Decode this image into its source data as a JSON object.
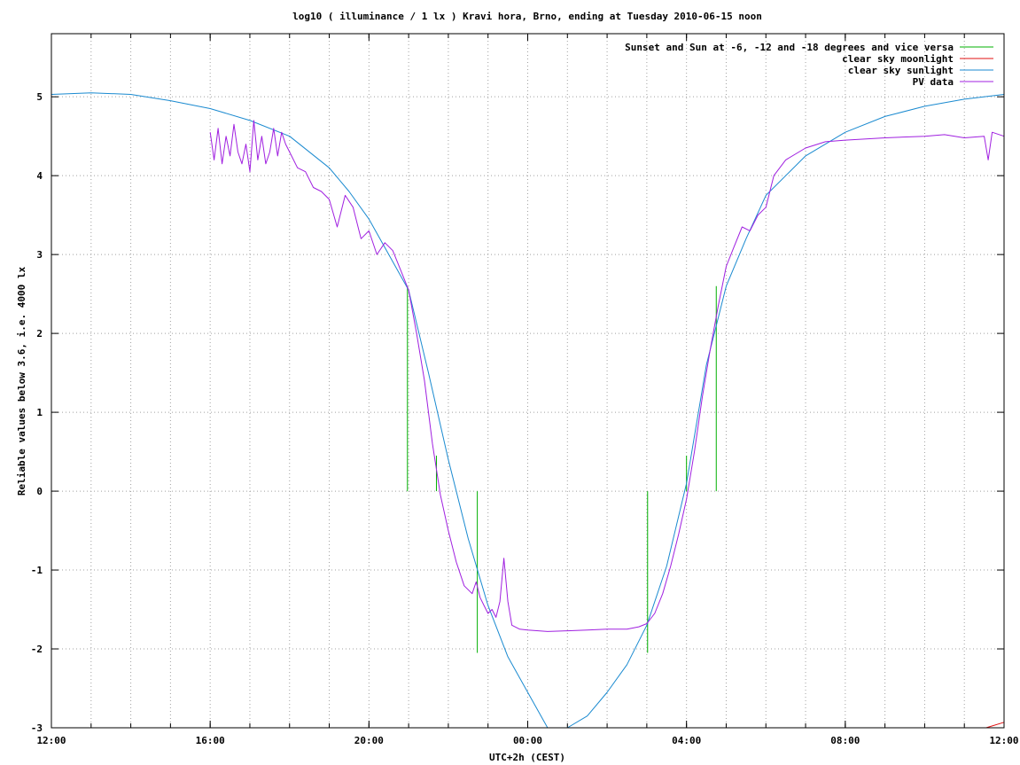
{
  "chart_data": {
    "type": "line",
    "title": "log10 ( illuminance / 1 lx ) Kravi hora, Brno, ending at Tuesday 2010-06-15 noon",
    "xlabel": "UTC+2h (CEST)",
    "ylabel": "Reliable values below 3.6, i.e. 4000 lx",
    "x_unit": "hours since 12:00 (UTC+2h)",
    "xlim": [
      0,
      24
    ],
    "ylim": [
      -3,
      5.8
    ],
    "grid": true,
    "legend_position": "top-right",
    "x_ticks": [
      {
        "value": 0,
        "label": "12:00"
      },
      {
        "value": 4,
        "label": "16:00"
      },
      {
        "value": 8,
        "label": "20:00"
      },
      {
        "value": 12,
        "label": "00:00"
      },
      {
        "value": 16,
        "label": "04:00"
      },
      {
        "value": 20,
        "label": "08:00"
      },
      {
        "value": 24,
        "label": "12:00"
      }
    ],
    "x_minor_step": 1,
    "y_ticks": [
      -3,
      -2,
      -1,
      0,
      1,
      2,
      3,
      4,
      5
    ],
    "series": [
      {
        "name": "Sunset and Sun at -6, -12 and -18 degrees and vice versa",
        "color": "#00b000",
        "kind": "vlines",
        "x": [
          8.97,
          9.7,
          10.73,
          15.02,
          16.0,
          16.75
        ],
        "y_top": [
          2.6,
          0.45,
          0.0,
          0.0,
          0.45,
          2.6
        ],
        "y_bottom": [
          0,
          0,
          -2.05,
          -2.05,
          0,
          0
        ]
      },
      {
        "name": "clear sky moonlight",
        "color": "#e01010",
        "kind": "line",
        "x": [
          23.55,
          24.0
        ],
        "y": [
          -3.0,
          -2.93
        ]
      },
      {
        "name": "clear sky sunlight",
        "color": "#1a8ad0",
        "kind": "line",
        "x": [
          0,
          1,
          2,
          3,
          4,
          5,
          6,
          7,
          7.5,
          8,
          8.5,
          9,
          9.5,
          10,
          10.5,
          11,
          11.5,
          12,
          12.5,
          13,
          13.5,
          14,
          14.5,
          15,
          15.5,
          16,
          16.5,
          17,
          17.5,
          18,
          19,
          20,
          21,
          22,
          23,
          24
        ],
        "y": [
          5.03,
          5.05,
          5.03,
          4.95,
          4.85,
          4.7,
          4.5,
          4.1,
          3.8,
          3.45,
          3.0,
          2.55,
          1.5,
          0.4,
          -0.6,
          -1.45,
          -2.1,
          -2.55,
          -3.0,
          -3.0,
          -2.85,
          -2.55,
          -2.2,
          -1.7,
          -0.95,
          0.1,
          1.6,
          2.6,
          3.2,
          3.75,
          4.25,
          4.55,
          4.75,
          4.88,
          4.97,
          5.03
        ]
      },
      {
        "name": "PV data",
        "color": "#a020e0",
        "kind": "line",
        "x": [
          4.0,
          4.1,
          4.2,
          4.3,
          4.4,
          4.5,
          4.6,
          4.7,
          4.8,
          4.9,
          5.0,
          5.1,
          5.2,
          5.3,
          5.4,
          5.5,
          5.6,
          5.7,
          5.8,
          5.9,
          6.0,
          6.2,
          6.4,
          6.6,
          6.8,
          7.0,
          7.2,
          7.4,
          7.6,
          7.8,
          8.0,
          8.2,
          8.4,
          8.6,
          8.8,
          9.0,
          9.2,
          9.4,
          9.6,
          9.8,
          10.0,
          10.2,
          10.4,
          10.6,
          10.7,
          10.8,
          10.9,
          11.0,
          11.1,
          11.2,
          11.3,
          11.4,
          11.5,
          11.6,
          11.8,
          12.0,
          12.5,
          13.0,
          13.5,
          14.0,
          14.5,
          14.8,
          15.0,
          15.2,
          15.4,
          15.6,
          15.8,
          16.0,
          16.2,
          16.4,
          16.6,
          16.8,
          17.0,
          17.2,
          17.4,
          17.6,
          17.8,
          18.0,
          18.2,
          18.5,
          19.0,
          19.5,
          20.0,
          21.0,
          22.0,
          22.5,
          23.0,
          23.5,
          23.6,
          23.7,
          24.0
        ],
        "y": [
          4.55,
          4.2,
          4.6,
          4.15,
          4.5,
          4.25,
          4.65,
          4.3,
          4.15,
          4.4,
          4.05,
          4.7,
          4.2,
          4.5,
          4.15,
          4.3,
          4.6,
          4.25,
          4.55,
          4.4,
          4.3,
          4.1,
          4.05,
          3.85,
          3.8,
          3.7,
          3.35,
          3.75,
          3.6,
          3.2,
          3.3,
          3.0,
          3.15,
          3.05,
          2.8,
          2.55,
          2.0,
          1.4,
          0.6,
          -0.05,
          -0.5,
          -0.9,
          -1.2,
          -1.3,
          -1.15,
          -1.35,
          -1.45,
          -1.55,
          -1.5,
          -1.6,
          -1.4,
          -0.85,
          -1.4,
          -1.7,
          -1.75,
          -1.76,
          -1.78,
          -1.77,
          -1.76,
          -1.75,
          -1.75,
          -1.72,
          -1.68,
          -1.55,
          -1.3,
          -0.95,
          -0.55,
          -0.1,
          0.5,
          1.2,
          1.8,
          2.35,
          2.85,
          3.1,
          3.35,
          3.3,
          3.5,
          3.6,
          4.0,
          4.2,
          4.35,
          4.43,
          4.45,
          4.48,
          4.5,
          4.52,
          4.48,
          4.5,
          4.2,
          4.55,
          4.5
        ]
      }
    ]
  }
}
